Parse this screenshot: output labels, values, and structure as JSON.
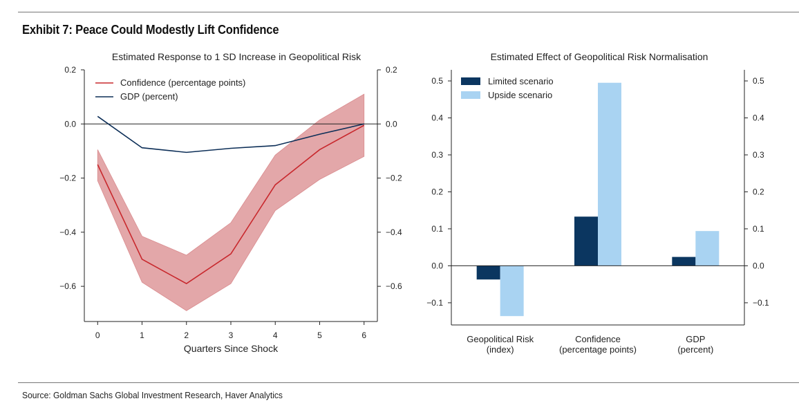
{
  "exhibit_title": "Exhibit 7: Peace Could Modestly Lift Confidence",
  "source": "Source: Goldman Sachs Global Investment Research, Haver Analytics",
  "chart_data": [
    {
      "type": "line",
      "title": "Estimated Response to 1 SD Increase in Geopolitical Risk",
      "xlabel": "Quarters Since Shock",
      "ylabel": "",
      "x": [
        0,
        1,
        2,
        3,
        4,
        5,
        6
      ],
      "xlim": [
        -0.3,
        6.3
      ],
      "ylim": [
        -0.73,
        0.2
      ],
      "yticks": [
        0.2,
        0.0,
        -0.2,
        -0.4,
        -0.6
      ],
      "ytick_labels": [
        "0.2",
        "0.0",
        "−0.2",
        "−0.4",
        "−0.6"
      ],
      "right_ytick_labels": [
        "0.2",
        "0.0",
        "−0.2",
        "−0.4",
        "−0.6"
      ],
      "xtick_labels": [
        "0",
        "1",
        "2",
        "3",
        "4",
        "5",
        "6"
      ],
      "zero_line": true,
      "legend_position": "top-left",
      "series": [
        {
          "name": "Confidence (percentage points)",
          "color": "#c8282d",
          "values": [
            -0.15,
            -0.5,
            -0.59,
            -0.48,
            -0.225,
            -0.095,
            -0.005
          ],
          "band_lower": [
            -0.21,
            -0.585,
            -0.69,
            -0.59,
            -0.32,
            -0.205,
            -0.12
          ],
          "band_upper": [
            -0.095,
            -0.415,
            -0.485,
            -0.365,
            -0.115,
            0.015,
            0.11
          ],
          "band_color": "#e3a7a9"
        },
        {
          "name": "GDP (percent)",
          "color": "#0c2e57",
          "values": [
            0.028,
            -0.088,
            -0.105,
            -0.09,
            -0.08,
            -0.038,
            0.0
          ]
        }
      ]
    },
    {
      "type": "bar",
      "title": "Estimated Effect of Geopolitical Risk Normalisation",
      "xlabel": "",
      "ylabel": "",
      "categories": [
        [
          "Geopolitical Risk",
          "(index)"
        ],
        [
          "Confidence",
          "(percentage points)"
        ],
        [
          "GDP",
          "(percent)"
        ]
      ],
      "ylim": [
        -0.16,
        0.53
      ],
      "yticks": [
        0.5,
        0.4,
        0.3,
        0.2,
        0.1,
        0.0,
        -0.1
      ],
      "ytick_labels": [
        "0.5",
        "0.4",
        "0.3",
        "0.2",
        "0.1",
        "0.0",
        "−0.1"
      ],
      "right_ytick_labels": [
        "0.5",
        "0.4",
        "0.3",
        "0.2",
        "0.1",
        "0.0",
        "−0.1"
      ],
      "zero_line": true,
      "legend_position": "top-left",
      "series": [
        {
          "name": "Limited scenario",
          "color": "#0b3660",
          "values": [
            -0.037,
            0.133,
            0.024
          ]
        },
        {
          "name": "Upside scenario",
          "color": "#a9d3f2",
          "values": [
            -0.136,
            0.495,
            0.094
          ]
        }
      ]
    }
  ]
}
